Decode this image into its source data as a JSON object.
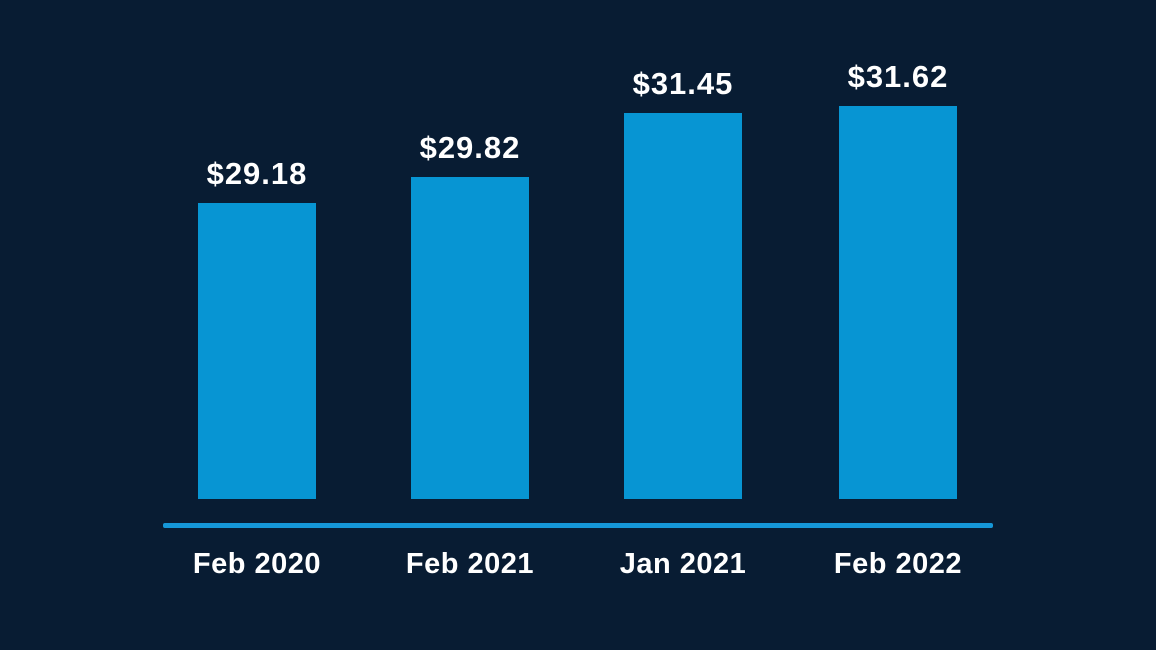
{
  "chart_data": {
    "type": "bar",
    "categories": [
      "Feb 2020",
      "Feb 2021",
      "Jan 2021",
      "Feb 2022"
    ],
    "values": [
      29.18,
      29.82,
      31.45,
      31.62
    ],
    "value_labels": [
      "$29.18",
      "$29.82",
      "$31.45",
      "$31.62"
    ],
    "title": "",
    "xlabel": "",
    "ylabel": "",
    "ylim": [
      21.7,
      31.8
    ],
    "grid": false,
    "legend": false,
    "colors": {
      "background": "#081c33",
      "bar": "#0795d3",
      "axis_line": "#1597d8",
      "text": "#ffffff"
    }
  }
}
